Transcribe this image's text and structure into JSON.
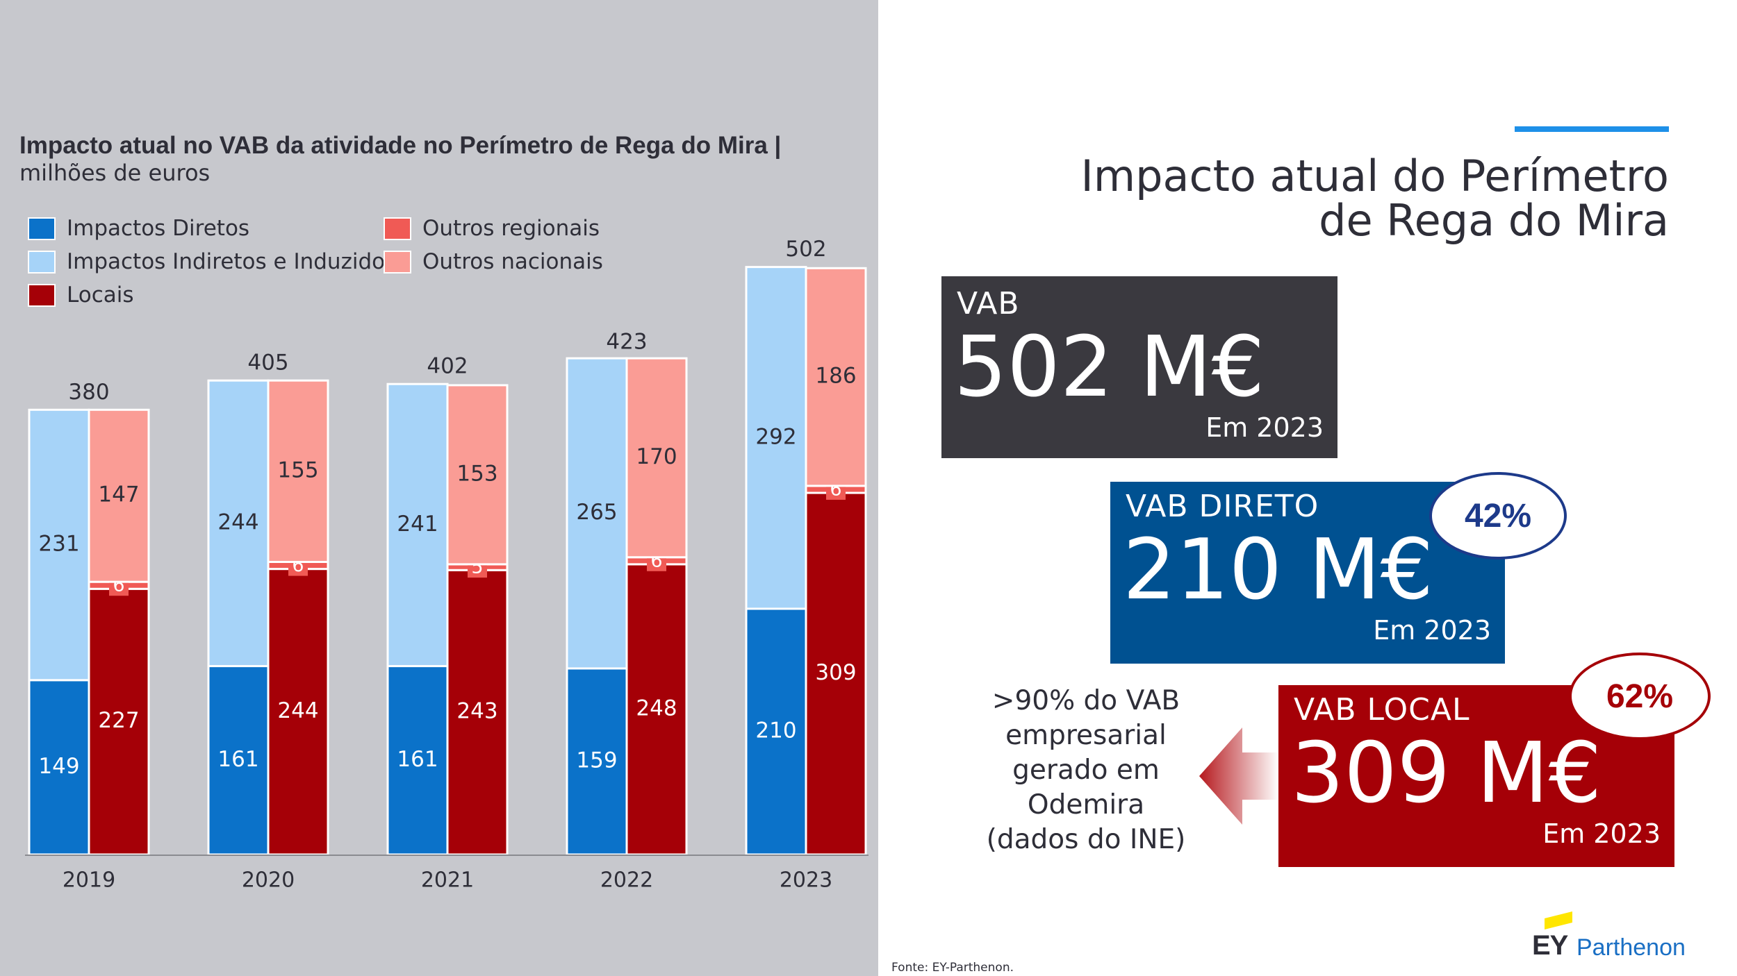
{
  "chart_data": {
    "type": "bar",
    "title": "Impacto atual no VAB da atividade no Perímetro de Rega do Mira |",
    "subtitle": "milhões de euros",
    "categories": [
      "2019",
      "2020",
      "2021",
      "2022",
      "2023"
    ],
    "totals": [
      380,
      405,
      402,
      423,
      502
    ],
    "stacks": {
      "impactos": [
        {
          "name": "Impactos Diretos",
          "color": "#0b72c9",
          "values": [
            149,
            161,
            161,
            159,
            210
          ]
        },
        {
          "name": "Impactos Indiretos e Induzidos",
          "color": "#a6d3f8",
          "values": [
            231,
            244,
            241,
            265,
            292
          ]
        }
      ],
      "regioes": [
        {
          "name": "Locais",
          "color": "#a50007",
          "values": [
            227,
            244,
            243,
            248,
            309
          ]
        },
        {
          "name": "Outros regionais",
          "color": "#f05a55",
          "values": [
            6,
            6,
            5,
            6,
            6
          ]
        },
        {
          "name": "Outros nacionais",
          "color": "#fa9c95",
          "values": [
            147,
            155,
            153,
            170,
            186
          ]
        }
      ]
    },
    "ylim": [
      0,
      502
    ],
    "legend": [
      {
        "label": "Impactos Diretos",
        "color": "#0b72c9"
      },
      {
        "label": "Impactos Indiretos e Induzidos",
        "color": "#a6d3f8"
      },
      {
        "label": "Locais",
        "color": "#a50007"
      },
      {
        "label": "Outros regionais",
        "color": "#f05a55"
      },
      {
        "label": "Outros nacionais",
        "color": "#fa9c95"
      }
    ]
  },
  "heading": {
    "line1": "Impacto atual do Perímetro",
    "line2": "de Rega do Mira"
  },
  "kpis": {
    "vab": {
      "label": "VAB",
      "value": "502 M€",
      "year": "Em 2023",
      "color": "#3a393f"
    },
    "direto": {
      "label": "VAB DIRETO",
      "value": "210 M€",
      "year": "Em 2023",
      "badge": "42%",
      "color": "#005191",
      "badge_color": "#1d3a8a"
    },
    "local": {
      "label": "VAB LOCAL",
      "value": "309 M€",
      "year": "Em 2023",
      "badge": "62%",
      "color": "#a50007",
      "badge_color": "#a50007"
    }
  },
  "note": ">90% do VAB empresarial gerado em Odemira (dados do INE)",
  "source": "Fonte: EY-Parthenon.",
  "logo": {
    "ey": "EY",
    "parthenon": "Parthenon"
  }
}
